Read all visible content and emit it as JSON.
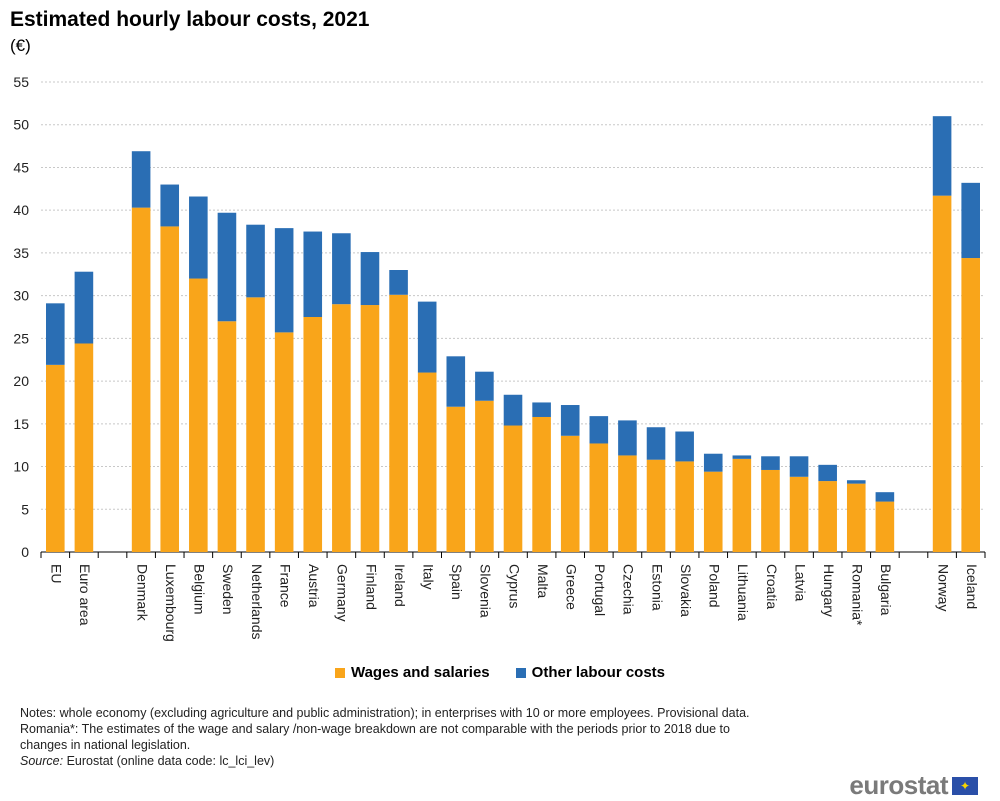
{
  "chart_data": {
    "type": "bar",
    "stacked": true,
    "title": "Estimated hourly labour costs, 2021",
    "unit": "(€)",
    "xlabel": "",
    "ylabel": "",
    "ylim": [
      0,
      55
    ],
    "yticks": [
      0,
      5,
      10,
      15,
      20,
      25,
      30,
      35,
      40,
      45,
      50,
      55
    ],
    "grid": true,
    "legend_position": "bottom",
    "categories": [
      "EU",
      "Euro area",
      "",
      "Denmark",
      "Luxembourg",
      "Belgium",
      "Sweden",
      "Netherlands",
      "France",
      "Austria",
      "Germany",
      "Finland",
      "Ireland",
      "Italy",
      "Spain",
      "Slovenia",
      "Cyprus",
      "Malta",
      "Greece",
      "Portugal",
      "Czechia",
      "Estonia",
      "Slovakia",
      "Poland",
      "Lithuania",
      "Croatia",
      "Latvia",
      "Hungary",
      "Romania*",
      "Bulgaria",
      "",
      "Norway",
      "Iceland"
    ],
    "series": [
      {
        "name": "Wages and salaries",
        "color": "#F9A51A",
        "values": [
          21.9,
          24.4,
          null,
          40.3,
          38.1,
          32.0,
          27.0,
          29.8,
          25.7,
          27.5,
          29.0,
          28.9,
          30.1,
          21.0,
          17.0,
          17.7,
          14.8,
          15.8,
          13.6,
          12.7,
          11.3,
          10.8,
          10.6,
          9.4,
          10.9,
          9.6,
          8.8,
          8.3,
          8.0,
          5.9,
          null,
          41.7,
          34.4
        ]
      },
      {
        "name": "Other labour costs",
        "color": "#2A6EB4",
        "values": [
          7.2,
          8.4,
          null,
          6.6,
          4.9,
          9.6,
          12.7,
          8.5,
          12.2,
          10.0,
          8.3,
          6.2,
          2.9,
          8.3,
          5.9,
          3.4,
          3.6,
          1.7,
          3.6,
          3.2,
          4.1,
          3.8,
          3.5,
          2.1,
          0.4,
          1.6,
          2.4,
          1.9,
          0.4,
          1.1,
          null,
          9.3,
          8.8
        ]
      }
    ]
  },
  "notes": {
    "line1": "Notes: whole economy (excluding agriculture and public administration); in enterprises with 10 or more employees. Provisional data.",
    "line2": "Romania*: The estimates of the wage and salary /non-wage breakdown are not comparable with the periods prior to 2018 due to",
    "line3": "changes in national legislation.",
    "source_label": "Source:",
    "source_text": " Eurostat (online data code: lc_lci_lev)"
  },
  "logo": {
    "text": "eurostat"
  }
}
